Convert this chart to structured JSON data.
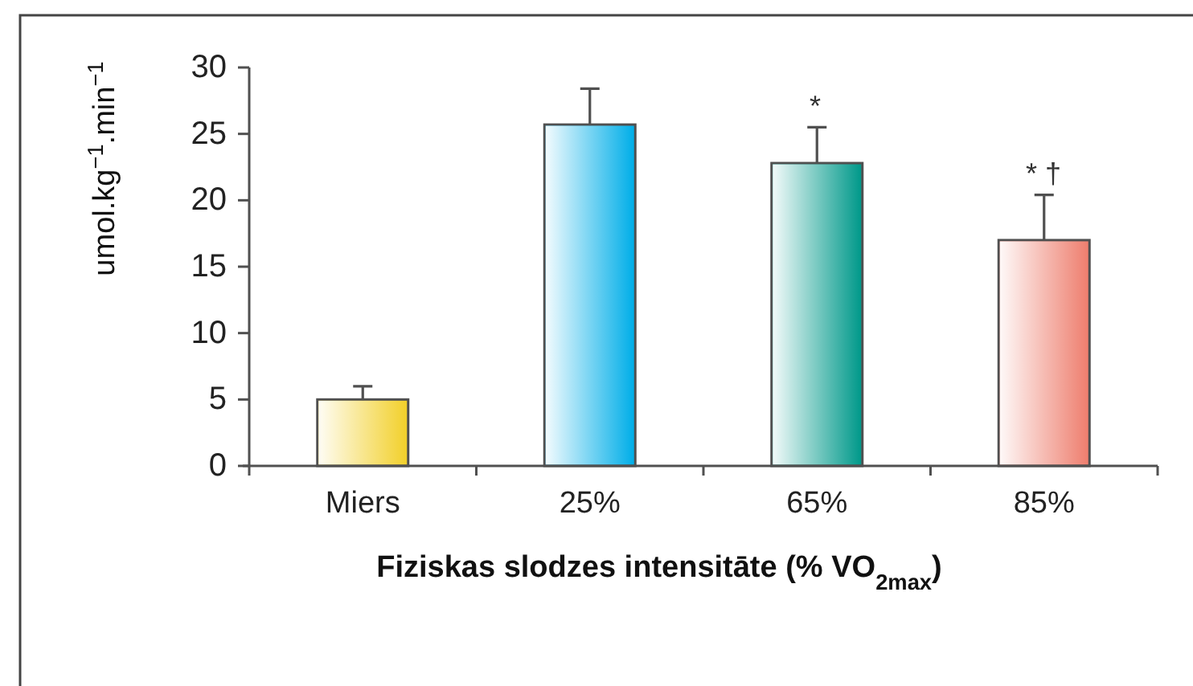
{
  "chart_data": {
    "type": "bar",
    "categories": [
      "Miers",
      "25%",
      "65%",
      "85%"
    ],
    "values": [
      5,
      25.7,
      22.8,
      17
    ],
    "colors": [
      "#f2d02a",
      "#00aee8",
      "#00998a",
      "#ee7e6e"
    ],
    "errors": [
      [
        5,
        6
      ],
      [
        25.7,
        28.4
      ],
      [
        22.8,
        25.5
      ],
      [
        17,
        20.4
      ]
    ],
    "ylim": [
      0,
      30
    ],
    "yticks": [
      0,
      5,
      10,
      15,
      20,
      25,
      30
    ],
    "ylabel": "umol.kg$^{−1}$.min$^{−1}$",
    "xlabel": "Fiziskas slodzes intensitāte (% VO$_{2max}$)",
    "annotations": [
      "*",
      "* †"
    ]
  }
}
